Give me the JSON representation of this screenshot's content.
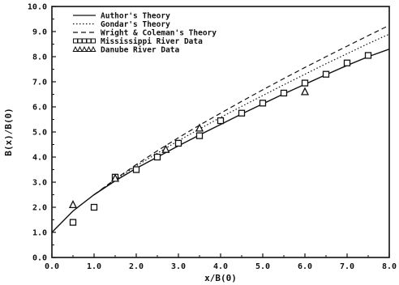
{
  "chart_data": {
    "type": "line",
    "title": "",
    "xlabel": "x/B(0)",
    "ylabel": "B(x)/B(0)",
    "xlim": [
      0,
      8
    ],
    "ylim": [
      0,
      10
    ],
    "x_ticks": [
      "0.0",
      "1.0",
      "2.0",
      "3.0",
      "4.0",
      "5.0",
      "6.0",
      "7.0",
      "8.0"
    ],
    "y_ticks": [
      "0.0",
      "1.0",
      "2.0",
      "3.0",
      "4.0",
      "5.0",
      "6.0",
      "7.0",
      "8.0",
      "9.0",
      "10.0"
    ],
    "grid": false,
    "legend_position": "top-left",
    "series": [
      {
        "name": "Author's Theory",
        "style": "solid",
        "x": [
          0,
          0.5,
          1,
          1.5,
          2,
          2.5,
          3,
          3.5,
          4,
          4.5,
          5,
          5.5,
          6,
          6.5,
          7,
          7.5,
          8
        ],
        "y": [
          1.0,
          1.85,
          2.5,
          3.05,
          3.55,
          4.0,
          4.45,
          4.88,
          5.3,
          5.72,
          6.12,
          6.52,
          6.9,
          7.28,
          7.65,
          8.0,
          8.3
        ]
      },
      {
        "name": "Gondar's Theory",
        "style": "dotted",
        "x": [
          1,
          1.5,
          2,
          2.5,
          3,
          3.5,
          4,
          4.5,
          5,
          5.5,
          6,
          6.5,
          7,
          7.5,
          8
        ],
        "y": [
          2.5,
          3.1,
          3.65,
          4.15,
          4.65,
          5.12,
          5.58,
          6.02,
          6.45,
          6.88,
          7.3,
          7.72,
          8.12,
          8.52,
          8.9
        ]
      },
      {
        "name": "Wright & Coleman's Theory",
        "style": "dashed",
        "x": [
          1,
          1.5,
          2,
          2.5,
          3,
          3.5,
          4,
          4.5,
          5,
          5.5,
          6,
          6.5,
          7,
          7.5,
          8
        ],
        "y": [
          2.5,
          3.12,
          3.7,
          4.25,
          4.77,
          5.27,
          5.75,
          6.22,
          6.68,
          7.13,
          7.57,
          8.0,
          8.42,
          8.84,
          9.25
        ]
      },
      {
        "name": "Mississippi River Data",
        "style": "square",
        "x": [
          0.5,
          1.0,
          1.5,
          2.0,
          2.5,
          3.0,
          3.5,
          4.0,
          4.5,
          5.0,
          5.5,
          6.0,
          6.5,
          7.0,
          7.5
        ],
        "y": [
          1.4,
          2.0,
          3.2,
          3.5,
          4.0,
          4.55,
          4.85,
          5.45,
          5.75,
          6.15,
          6.55,
          6.95,
          7.3,
          7.75,
          8.05
        ]
      },
      {
        "name": "Danube River Data",
        "style": "triangle",
        "x": [
          0.5,
          1.5,
          2.7,
          3.5,
          6.0
        ],
        "y": [
          2.1,
          3.15,
          4.3,
          5.15,
          6.6
        ]
      }
    ]
  }
}
